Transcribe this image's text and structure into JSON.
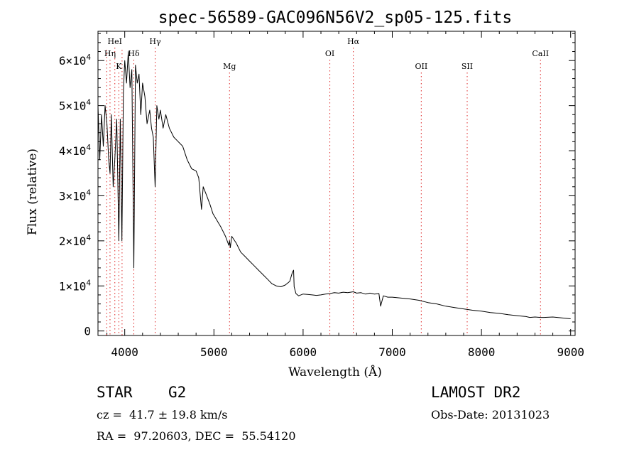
{
  "chart_data": {
    "type": "line",
    "title": "spec-56589-GAC096N56V2_sp05-125.fits",
    "xlabel": "Wavelength (Å)",
    "ylabel": "Flux (relative)",
    "xlim": [
      3700,
      9050
    ],
    "ylim": [
      -1000,
      66500
    ],
    "x_ticks": [
      4000,
      5000,
      6000,
      7000,
      8000,
      9000
    ],
    "y_ticks": [
      {
        "value": 0,
        "mantissa": "0",
        "exp": ""
      },
      {
        "value": 10000,
        "mantissa": "1×10",
        "exp": "4"
      },
      {
        "value": 20000,
        "mantissa": "2×10",
        "exp": "4"
      },
      {
        "value": 30000,
        "mantissa": "3×10",
        "exp": "4"
      },
      {
        "value": 40000,
        "mantissa": "4×10",
        "exp": "4"
      },
      {
        "value": 50000,
        "mantissa": "5×10",
        "exp": "4"
      },
      {
        "value": 60000,
        "mantissa": "6×10",
        "exp": "4"
      }
    ],
    "grid": false,
    "lines": [
      {
        "label": "HeI",
        "wavelength": 3889,
        "row": 1
      },
      {
        "label": "Hη",
        "wavelength": 3835,
        "row": 2
      },
      {
        "label": "K",
        "wavelength": 3934,
        "row": 3
      },
      {
        "label": "Hδ",
        "wavelength": 4102,
        "row": 2
      },
      {
        "label": "Hγ",
        "wavelength": 4341,
        "row": 1
      },
      {
        "label": "Mg",
        "wavelength": 5175,
        "row": 3
      },
      {
        "label": "OI",
        "wavelength": 6300,
        "row": 2
      },
      {
        "label": "Hα",
        "wavelength": 6563,
        "row": 1
      },
      {
        "label": "OII",
        "wavelength": 7325,
        "row": 3
      },
      {
        "label": "SII",
        "wavelength": 7840,
        "row": 3
      },
      {
        "label": "CaII",
        "wavelength": 8662,
        "row": 2
      }
    ],
    "extra_line_markers": [
      3798,
      3970
    ],
    "series": [
      {
        "x": [
          3700,
          3720,
          3740,
          3760,
          3780,
          3800,
          3820,
          3835,
          3850,
          3870,
          3889,
          3910,
          3934,
          3950,
          3968,
          3985,
          4000,
          4020,
          4040,
          4060,
          4080,
          4102,
          4120,
          4140,
          4160,
          4180,
          4200,
          4226,
          4250,
          4280,
          4300,
          4320,
          4341,
          4360,
          4383,
          4400,
          4430,
          4460,
          4500,
          4550,
          4600,
          4650,
          4700,
          4750,
          4800,
          4830,
          4861,
          4880,
          4920,
          4957,
          4990,
          5020,
          5080,
          5130,
          5167,
          5175,
          5184,
          5200,
          5250,
          5300,
          5350,
          5400,
          5450,
          5500,
          5550,
          5600,
          5650,
          5700,
          5750,
          5800,
          5850,
          5880,
          5893,
          5900,
          5920,
          5950,
          6000,
          6050,
          6100,
          6150,
          6200,
          6250,
          6300,
          6350,
          6400,
          6450,
          6500,
          6563,
          6600,
          6650,
          6700,
          6750,
          6800,
          6850,
          6869,
          6900,
          6950,
          7000,
          7100,
          7200,
          7300,
          7400,
          7500,
          7600,
          7700,
          7800,
          7900,
          8000,
          8100,
          8200,
          8300,
          8400,
          8500,
          8542,
          8600,
          8662,
          8700,
          8800,
          8900,
          9000
        ],
        "y": [
          50000,
          38000,
          48000,
          41000,
          50000,
          46000,
          38000,
          35000,
          48000,
          32000,
          38000,
          47000,
          20000,
          47000,
          20000,
          53000,
          60000,
          55000,
          62000,
          54000,
          58000,
          14000,
          59000,
          55000,
          57000,
          48000,
          55000,
          52000,
          46000,
          49000,
          45000,
          43000,
          32000,
          50000,
          47000,
          49000,
          45000,
          48000,
          45000,
          43000,
          42000,
          41000,
          38000,
          36000,
          35500,
          34000,
          27000,
          32000,
          30000,
          28000,
          26000,
          25000,
          23000,
          21000,
          19000,
          20000,
          18500,
          21000,
          19500,
          17500,
          16500,
          15500,
          14500,
          13500,
          12500,
          11500,
          10500,
          10000,
          9800,
          10200,
          11000,
          13000,
          13500,
          9800,
          8300,
          7800,
          8200,
          8100,
          8000,
          7900,
          8000,
          8200,
          8300,
          8500,
          8400,
          8600,
          8500,
          8700,
          8400,
          8500,
          8200,
          8400,
          8200,
          8300,
          5500,
          7800,
          7500,
          7500,
          7300,
          7100,
          6800,
          6300,
          6000,
          5500,
          5200,
          4900,
          4600,
          4400,
          4100,
          3900,
          3600,
          3400,
          3200,
          3000,
          3100,
          3000,
          3000,
          3100,
          2900,
          2700
        ]
      }
    ]
  },
  "info": {
    "object_class": "STAR",
    "subclass": "G2",
    "redshift": "cz =  41.7 ± 19.8 km/s",
    "coords": "RA =  97.20603, DEC =  55.54120",
    "survey": "LAMOST DR2",
    "obs_date": "Obs-Date: 20131023"
  }
}
